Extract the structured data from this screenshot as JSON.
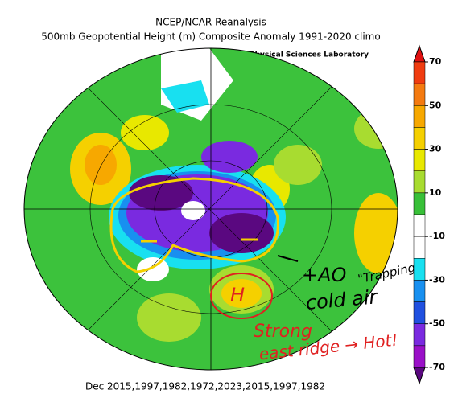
{
  "header": {
    "title": "NCEP/NCAR Reanalysis",
    "subtitle": "500mb Geopotential Height (m) Composite Anomaly 1991-2020 climo",
    "credit": "NOAA Physical Sciences Laboratory"
  },
  "colorbar": {
    "ticks": [
      70,
      50,
      30,
      10,
      -10,
      -30,
      -50,
      -70
    ],
    "colors": [
      "#e01010",
      "#f03c10",
      "#f47a10",
      "#f7a800",
      "#f5d000",
      "#e8e800",
      "#a8dc30",
      "#38c038",
      "#ffffff",
      "#ffffff",
      "#18e0f0",
      "#1890f0",
      "#2050e0",
      "#7a2ae0",
      "#9a10c8",
      "#5a0880"
    ]
  },
  "annotations": {
    "ao": "+AO",
    "trapping": "\"Trapping\"",
    "cold": "cold air",
    "strong": "Strong",
    "ridge": "east ridge → Hot!",
    "high": "H"
  },
  "footer": "Dec 2015,1997,1982,1972,2023,2015,1997,1982"
}
